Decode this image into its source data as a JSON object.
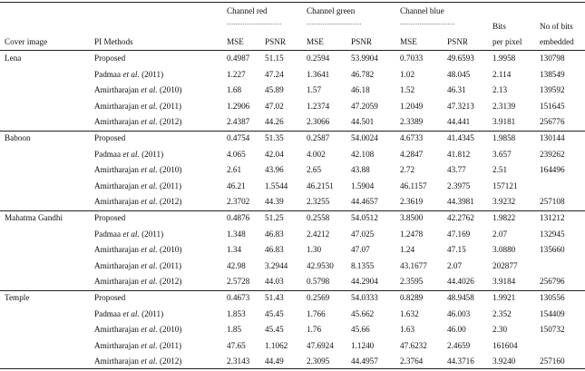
{
  "header": {
    "cover_image": "Cover image",
    "pi_methods": "PI Methods",
    "channel_red": "Channel red",
    "channel_green": "Channel green",
    "channel_blue": "Channel blue",
    "dots": "...............................",
    "mse": "MSE",
    "psnr": "PSNR",
    "bits_line1": "Bits",
    "bits_line2": "per pixel",
    "nbits_line1": "No of bits",
    "nbits_line2": "embedded"
  },
  "groups": [
    {
      "cover": "Lena",
      "rows": [
        {
          "author": "Proposed",
          "etal": "",
          "year": "",
          "r_mse": "0.4987",
          "r_psnr": "51.15",
          "g_mse": "0.2594",
          "g_psnr": "53.9904",
          "b_mse": "0.7033",
          "b_psnr": "49.6593",
          "bpp": "1.9958",
          "bits": "130798"
        },
        {
          "author": "Padmaa ",
          "etal": "et al.",
          "year": " (2011)",
          "r_mse": "1.227",
          "r_psnr": "47.24",
          "g_mse": "1.3641",
          "g_psnr": "46.782",
          "b_mse": "1.02",
          "b_psnr": "48.045",
          "bpp": "2.114",
          "bits": "138549"
        },
        {
          "author": "Amirtharajan ",
          "etal": "et al.",
          "year": " (2010)",
          "r_mse": "1.68",
          "r_psnr": "45.89",
          "g_mse": "1.57",
          "g_psnr": "46.18",
          "b_mse": "1.52",
          "b_psnr": "46.31",
          "bpp": "2.13",
          "bits": "139592"
        },
        {
          "author": "Amirtharajan ",
          "etal": "et al.",
          "year": " (2011)",
          "r_mse": "1.2906",
          "r_psnr": "47.02",
          "g_mse": "1.2374",
          "g_psnr": "47.2059",
          "b_mse": "1.2049",
          "b_psnr": "47.3213",
          "bpp": "2.3139",
          "bits": "151645"
        },
        {
          "author": "Amirtharajan ",
          "etal": "et al.",
          "year": " (2012)",
          "r_mse": "2.4387",
          "r_psnr": "44.26",
          "g_mse": "2.3066",
          "g_psnr": "44.501",
          "b_mse": "2.3389",
          "b_psnr": "44.441",
          "bpp": "3.9181",
          "bits": "256776"
        }
      ]
    },
    {
      "cover": "Baboon",
      "rows": [
        {
          "author": "Proposed",
          "etal": "",
          "year": "",
          "r_mse": "0.4754",
          "r_psnr": "51.35",
          "g_mse": "0.2587",
          "g_psnr": "54.0024",
          "b_mse": "4.6733",
          "b_psnr": "41.4345",
          "bpp": "1.9858",
          "bits": "130144"
        },
        {
          "author": "Padmaa ",
          "etal": "et al.",
          "year": " (2011)",
          "r_mse": "4.065",
          "r_psnr": "42.04",
          "g_mse": "4.002",
          "g_psnr": "42.108",
          "b_mse": "4.2847",
          "b_psnr": "41.812",
          "bpp": "3.657",
          "bits": "239262"
        },
        {
          "author": "Amirtharajan ",
          "etal": "et al.",
          "year": " (2010)",
          "r_mse": "2.61",
          "r_psnr": "43.96",
          "g_mse": "2.65",
          "g_psnr": "43.88",
          "b_mse": "2.72",
          "b_psnr": "43.77",
          "bpp": "2.51",
          "bits": "164496"
        },
        {
          "author": "Amirtharajan ",
          "etal": "et al.",
          "year": " (2011)",
          "r_mse": "46.21",
          "r_psnr": "1.5544",
          "g_mse": "46.2151",
          "g_psnr": "1.5904",
          "b_mse": "46.1157",
          "b_psnr": "2.3975",
          "bpp": "157121",
          "bits": ""
        },
        {
          "author": "Amirtharajan ",
          "etal": "et al.",
          "year": " (2012)",
          "r_mse": "2.3702",
          "r_psnr": "44.39",
          "g_mse": "2.3255",
          "g_psnr": "44.4657",
          "b_mse": "2.3619",
          "b_psnr": "44.3981",
          "bpp": "3.9232",
          "bits": "257108"
        }
      ]
    },
    {
      "cover": "Mahatma Gandhi",
      "rows": [
        {
          "author": "Proposed",
          "etal": "",
          "year": "",
          "r_mse": "0.4876",
          "r_psnr": "51.25",
          "g_mse": "0.2558",
          "g_psnr": "54.0512",
          "b_mse": "3.8500",
          "b_psnr": "42.2762",
          "bpp": "1.9822",
          "bits": "131212"
        },
        {
          "author": "Padmaa ",
          "etal": "et al.",
          "year": " (2011)",
          "r_mse": "1.348",
          "r_psnr": "46.83",
          "g_mse": "2.4212",
          "g_psnr": "47.025",
          "b_mse": "1.2478",
          "b_psnr": "47.169",
          "bpp": "2.07",
          "bits": "132945"
        },
        {
          "author": "Amirtharajan ",
          "etal": "et al.",
          "year": " (2010)",
          "r_mse": "1.34",
          "r_psnr": "46.83",
          "g_mse": "1.30",
          "g_psnr": "47.07",
          "b_mse": "1.24",
          "b_psnr": "47.15",
          "bpp": "3.0880",
          "bits": "135660"
        },
        {
          "author": "Amirtharajan ",
          "etal": "et al.",
          "year": " (2011)",
          "r_mse": "42.98",
          "r_psnr": "3.2944",
          "g_mse": "42.9530",
          "g_psnr": "8.1355",
          "b_mse": "43.1677",
          "b_psnr": "2.07",
          "bpp": "202877",
          "bits": ""
        },
        {
          "author": "Amirtharajan ",
          "etal": "et al.",
          "year": " (2012)",
          "r_mse": "2.5728",
          "r_psnr": "44.03",
          "g_mse": "0.5798",
          "g_psnr": "44.2904",
          "b_mse": "2.3595",
          "b_psnr": "44.4026",
          "bpp": "3.9184",
          "bits": "256796"
        }
      ]
    },
    {
      "cover": "Temple",
      "rows": [
        {
          "author": "Proposed",
          "etal": "",
          "year": "",
          "r_mse": "0.4673",
          "r_psnr": "51.43",
          "g_mse": "0.2569",
          "g_psnr": "54.0333",
          "b_mse": "0.8289",
          "b_psnr": "48.9458",
          "bpp": "1.9921",
          "bits": "130556"
        },
        {
          "author": "Padmaa ",
          "etal": "et al.",
          "year": " (2011)",
          "r_mse": "1.853",
          "r_psnr": "45.45",
          "g_mse": "1.766",
          "g_psnr": "45.662",
          "b_mse": "1.632",
          "b_psnr": "46.003",
          "bpp": "2.352",
          "bits": "154409"
        },
        {
          "author": "Amirtharajan ",
          "etal": "et al.",
          "year": " (2010)",
          "r_mse": "1.85",
          "r_psnr": "45.45",
          "g_mse": "1.76",
          "g_psnr": "45.66",
          "b_mse": "1.63",
          "b_psnr": "46.00",
          "bpp": "2.30",
          "bits": "150732"
        },
        {
          "author": "Amirtharajan ",
          "etal": "et al.",
          "year": " (2011)",
          "r_mse": "47.65",
          "r_psnr": "1.1062",
          "g_mse": "47.6924",
          "g_psnr": "1.1240",
          "b_mse": "47.6232",
          "b_psnr": "2.4659",
          "bpp": "161604",
          "bits": ""
        },
        {
          "author": "Amirtharajan ",
          "etal": "et al.",
          "year": " (2012)",
          "r_mse": "2.3143",
          "r_psnr": "44.49",
          "g_mse": "2.3095",
          "g_psnr": "44.4957",
          "b_mse": "2.3764",
          "b_psnr": "44.3716",
          "bpp": "3.9240",
          "bits": "257160"
        }
      ]
    }
  ]
}
